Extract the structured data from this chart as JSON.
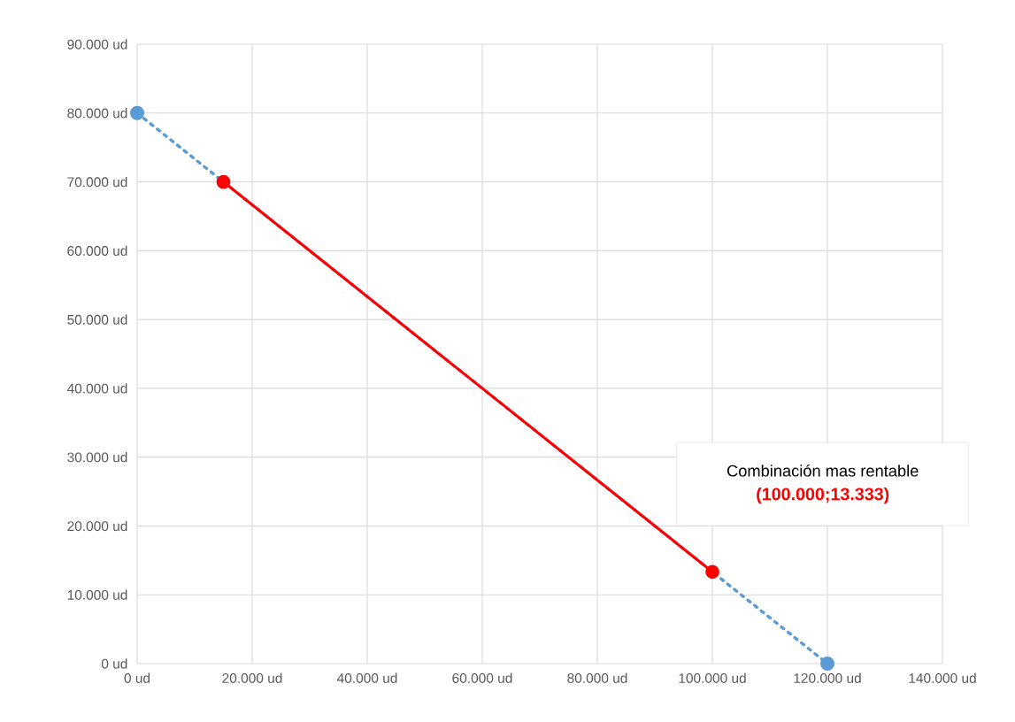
{
  "chart_data": {
    "type": "line",
    "series": [
      {
        "color": "#5b9bd5",
        "x": [
          0,
          120000
        ],
        "values": [
          80000,
          0
        ],
        "line_style": "dotted"
      },
      {
        "color": "#ff0000",
        "x": [
          15000,
          100000
        ],
        "values": [
          70000,
          13333
        ],
        "line_style": "solid"
      }
    ],
    "marker": "circle",
    "xlim": [
      0,
      140000
    ],
    "ylim": [
      0,
      90000
    ],
    "xticks": [
      {
        "value": 0,
        "label": "0 ud"
      },
      {
        "value": 20000,
        "label": "20.000 ud"
      },
      {
        "value": 40000,
        "label": "40.000 ud"
      },
      {
        "value": 60000,
        "label": "60.000 ud"
      },
      {
        "value": 80000,
        "label": "80.000 ud"
      },
      {
        "value": 100000,
        "label": "100.000 ud"
      },
      {
        "value": 120000,
        "label": "120.000 ud"
      },
      {
        "value": 140000,
        "label": "140.000 ud"
      }
    ],
    "yticks": [
      {
        "value": 0,
        "label": "0 ud"
      },
      {
        "value": 10000,
        "label": "10.000 ud"
      },
      {
        "value": 20000,
        "label": "20.000 ud"
      },
      {
        "value": 30000,
        "label": "30.000 ud"
      },
      {
        "value": 40000,
        "label": "40.000 ud"
      },
      {
        "value": 50000,
        "label": "50.000 ud"
      },
      {
        "value": 60000,
        "label": "60.000 ud"
      },
      {
        "value": 70000,
        "label": "70.000 ud"
      },
      {
        "value": 80000,
        "label": "80.000 ud"
      },
      {
        "value": 90000,
        "label": "90.000 ud"
      }
    ],
    "grid": true,
    "annotations": [
      "Combinación mas rentable",
      "**(100.000;13.333)**"
    ]
  }
}
